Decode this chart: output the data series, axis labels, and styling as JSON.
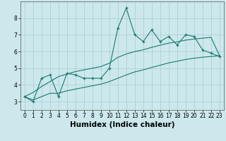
{
  "xlabel": "Humidex (Indice chaleur)",
  "x_values": [
    0,
    1,
    2,
    3,
    4,
    5,
    6,
    7,
    8,
    9,
    10,
    11,
    12,
    13,
    14,
    15,
    16,
    17,
    18,
    19,
    20,
    21,
    22,
    23
  ],
  "y_main": [
    3.3,
    3.0,
    4.4,
    4.6,
    3.3,
    4.7,
    4.6,
    4.4,
    4.4,
    4.4,
    5.0,
    7.4,
    8.6,
    7.0,
    6.6,
    7.3,
    6.6,
    6.9,
    6.4,
    7.0,
    6.9,
    6.1,
    5.9,
    5.7
  ],
  "y_upper": [
    3.3,
    3.55,
    3.9,
    4.2,
    4.5,
    4.65,
    4.8,
    4.9,
    5.0,
    5.1,
    5.3,
    5.65,
    5.85,
    6.0,
    6.1,
    6.25,
    6.38,
    6.5,
    6.58,
    6.68,
    6.75,
    6.8,
    6.85,
    5.75
  ],
  "y_lower": [
    3.3,
    3.1,
    3.3,
    3.5,
    3.5,
    3.65,
    3.75,
    3.85,
    3.95,
    4.05,
    4.2,
    4.4,
    4.6,
    4.78,
    4.9,
    5.05,
    5.18,
    5.32,
    5.42,
    5.52,
    5.6,
    5.66,
    5.7,
    5.75
  ],
  "ylim": [
    2.5,
    9.0
  ],
  "xlim": [
    -0.5,
    23.5
  ],
  "yticks": [
    3,
    4,
    5,
    6,
    7,
    8
  ],
  "xticks": [
    0,
    1,
    2,
    3,
    4,
    5,
    6,
    7,
    8,
    9,
    10,
    11,
    12,
    13,
    14,
    15,
    16,
    17,
    18,
    19,
    20,
    21,
    22,
    23
  ],
  "line_color": "#1a7a6e",
  "bg_color": "#cce8ec",
  "grid_color": "#aaccd0",
  "tick_fontsize": 5.5,
  "label_fontsize": 7.5
}
